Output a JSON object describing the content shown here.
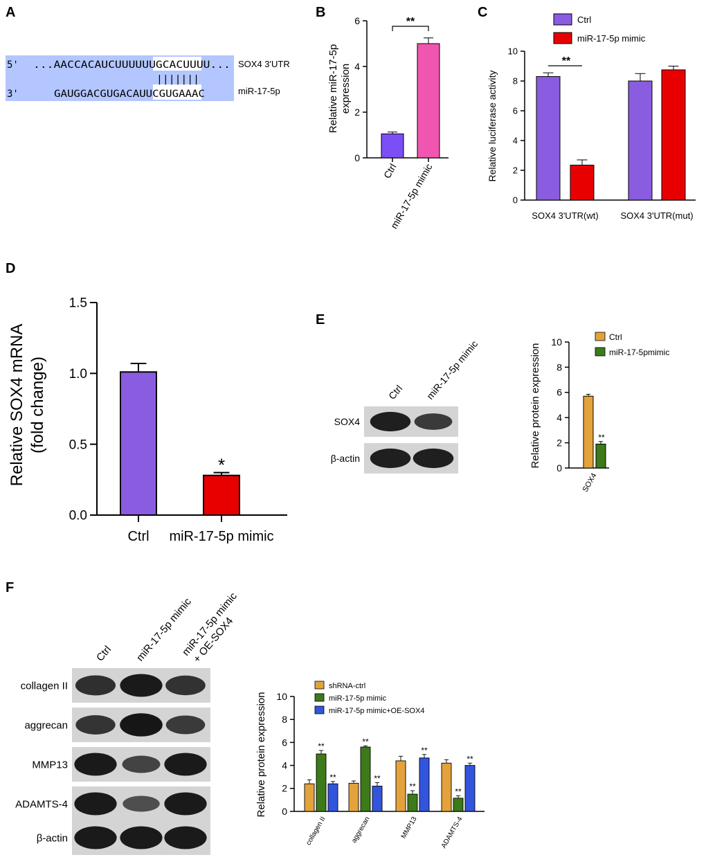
{
  "panel_labels": {
    "a": "A",
    "b": "B",
    "c": "C",
    "d": "D",
    "e": "E",
    "f": "F"
  },
  "panel_a": {
    "prime5": "5'",
    "prime3": "3'",
    "seq_top": "...AACCACAUCUUUUUUGCACUUUU...",
    "seq_bottom": "GAUGGACGUGACAUUCGUGAAAC",
    "pairing": "|||||||",
    "label_top": "SOX4 3'UTR",
    "label_bottom": "miR-17-5p",
    "bg_color": "#b3c6ff"
  },
  "panel_e_blot": {
    "lanes": [
      "Ctrl",
      "miR-17-5p mimic"
    ],
    "rows": [
      {
        "label": "SOX4",
        "intensity": [
          0.9,
          0.65
        ]
      },
      {
        "label": "β-actin",
        "intensity": [
          0.9,
          0.9
        ]
      }
    ]
  },
  "panel_f_blot": {
    "lanes": [
      "Ctrl",
      "miR-17-5p mimic",
      "miR-17-5p mimic",
      "+ OE-SOX4"
    ],
    "rows": [
      {
        "label": "collagen II",
        "intensity": [
          0.75,
          0.95,
          0.72
        ]
      },
      {
        "label": "aggrecan",
        "intensity": [
          0.7,
          0.98,
          0.65
        ]
      },
      {
        "label": "MMP13",
        "intensity": [
          0.95,
          0.55,
          0.95
        ]
      },
      {
        "label": "ADAMTS-4",
        "intensity": [
          0.95,
          0.45,
          0.95
        ]
      },
      {
        "label": "β-actin",
        "intensity": [
          0.95,
          0.95,
          0.95
        ]
      }
    ]
  },
  "chart_data": [
    {
      "id": "B",
      "type": "bar",
      "categories": [
        "Ctrl",
        "miR-17-5p mimic"
      ],
      "values": [
        1.05,
        5.0
      ],
      "errors": [
        0.08,
        0.25
      ],
      "colors": [
        "#7b4ff5",
        "#f055b0"
      ],
      "ylabel": "Relative miR-17-5p expression",
      "ylabel_lines": [
        "Relative miR-17-5p",
        "expression"
      ],
      "ylim": [
        0,
        6
      ],
      "yticks": [
        "0",
        "2",
        "4",
        "6"
      ],
      "annotation": "**"
    },
    {
      "id": "C",
      "type": "bar",
      "categories": [
        "SOX4 3'UTR(wt)",
        "SOX4 3'UTR(mut)"
      ],
      "series": [
        {
          "name": "Ctrl",
          "values": [
            8.3,
            8.0
          ],
          "errors": [
            0.25,
            0.5
          ],
          "color": "#8a5ce0"
        },
        {
          "name": "miR-17-5p mimic",
          "values": [
            2.35,
            8.75
          ],
          "errors": [
            0.35,
            0.25
          ],
          "color": "#e80000"
        }
      ],
      "ylabel": "Relative luciferase activity",
      "ylim": [
        0,
        10
      ],
      "yticks": [
        "0",
        "2",
        "4",
        "6",
        "8",
        "10"
      ],
      "annotation": "**"
    },
    {
      "id": "D",
      "type": "bar",
      "categories": [
        "Ctrl",
        "miR-17-5p mimic"
      ],
      "values": [
        1.01,
        0.28
      ],
      "errors": [
        0.06,
        0.02
      ],
      "colors": [
        "#8a5ce0",
        "#e80000"
      ],
      "ylabel": "Relative SOX4 mRNA (fold change)",
      "ylabel_lines": [
        "Relative SOX4 mRNA",
        "(fold change)"
      ],
      "ylim": [
        0,
        1.5
      ],
      "yticks": [
        "0.0",
        "0.5",
        "1.0",
        "1.5"
      ],
      "annotation": "*"
    },
    {
      "id": "E",
      "type": "bar",
      "categories": [
        "SOX4"
      ],
      "series": [
        {
          "name": "Ctrl",
          "values": [
            5.7
          ],
          "errors": [
            0.15
          ],
          "color": "#e3a23c"
        },
        {
          "name": "miR-17-5pmimic",
          "values": [
            1.9
          ],
          "errors": [
            0.2
          ],
          "color": "#3d7a1a"
        }
      ],
      "ylabel": "Relative protein expression",
      "ylim": [
        0,
        10
      ],
      "yticks": [
        "0",
        "2",
        "4",
        "6",
        "8",
        "10"
      ],
      "annotation": "**"
    },
    {
      "id": "F",
      "type": "bar",
      "categories": [
        "collagen II",
        "aggrecan",
        "MMP13",
        "ADAMTS-4"
      ],
      "series": [
        {
          "name": "shRNA-ctrl",
          "values": [
            2.4,
            2.45,
            4.4,
            4.2
          ],
          "errors": [
            0.35,
            0.2,
            0.4,
            0.3
          ],
          "color": "#e3a23c"
        },
        {
          "name": "miR-17-5p mimic",
          "values": [
            5.0,
            5.6,
            1.5,
            1.15
          ],
          "errors": [
            0.3,
            0.1,
            0.3,
            0.2
          ],
          "color": "#3d7a1a"
        },
        {
          "name": "miR-17-5p mimic+OE-SOX4",
          "values": [
            2.4,
            2.2,
            4.65,
            4.0
          ],
          "errors": [
            0.2,
            0.3,
            0.3,
            0.2
          ],
          "color": "#3355dd"
        }
      ],
      "ylabel": "Relative protein expression",
      "ylim": [
        0,
        10
      ],
      "yticks": [
        "0",
        "2",
        "4",
        "6",
        "8",
        "10"
      ],
      "annotation": "**"
    }
  ]
}
